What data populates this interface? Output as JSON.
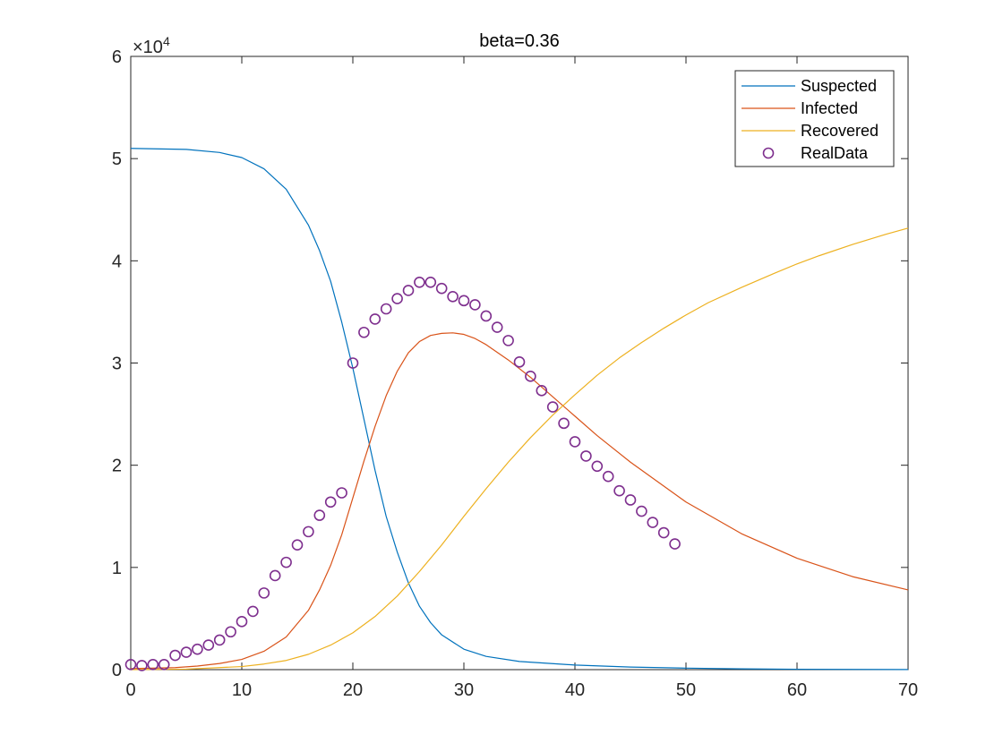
{
  "chart_data": {
    "type": "line",
    "title": "beta=0.36",
    "xlabel": "",
    "ylabel": "",
    "xlim": [
      0,
      70
    ],
    "ylim": [
      0,
      60000
    ],
    "x_ticks": [
      0,
      10,
      20,
      30,
      40,
      50,
      60,
      70
    ],
    "y_ticks": [
      0,
      1,
      2,
      3,
      4,
      5,
      6
    ],
    "y_exponent": {
      "base": "×10",
      "power": "4"
    },
    "legend_position": "top-right",
    "grid": false,
    "series": [
      {
        "name": "Suspected",
        "style": "line",
        "color": "#0072BD",
        "points": [
          [
            0,
            51000
          ],
          [
            5,
            50900
          ],
          [
            8,
            50600
          ],
          [
            10,
            50100
          ],
          [
            12,
            49000
          ],
          [
            14,
            47000
          ],
          [
            16,
            43500
          ],
          [
            17,
            41000
          ],
          [
            18,
            38000
          ],
          [
            19,
            34000
          ],
          [
            20,
            29500
          ],
          [
            21,
            24500
          ],
          [
            22,
            19500
          ],
          [
            23,
            15000
          ],
          [
            24,
            11500
          ],
          [
            25,
            8500
          ],
          [
            26,
            6200
          ],
          [
            27,
            4600
          ],
          [
            28,
            3400
          ],
          [
            30,
            2000
          ],
          [
            32,
            1300
          ],
          [
            35,
            800
          ],
          [
            40,
            450
          ],
          [
            45,
            250
          ],
          [
            50,
            150
          ],
          [
            55,
            80
          ],
          [
            60,
            40
          ],
          [
            70,
            10
          ]
        ]
      },
      {
        "name": "Infected",
        "style": "line",
        "color": "#D95319",
        "points": [
          [
            0,
            100
          ],
          [
            4,
            200
          ],
          [
            6,
            350
          ],
          [
            8,
            600
          ],
          [
            10,
            1000
          ],
          [
            12,
            1800
          ],
          [
            14,
            3200
          ],
          [
            16,
            5800
          ],
          [
            17,
            7800
          ],
          [
            18,
            10200
          ],
          [
            19,
            13200
          ],
          [
            20,
            16800
          ],
          [
            21,
            20400
          ],
          [
            22,
            23800
          ],
          [
            23,
            26800
          ],
          [
            24,
            29200
          ],
          [
            25,
            31000
          ],
          [
            26,
            32100
          ],
          [
            27,
            32700
          ],
          [
            28,
            32900
          ],
          [
            29,
            32950
          ],
          [
            30,
            32800
          ],
          [
            31,
            32400
          ],
          [
            32,
            31800
          ],
          [
            34,
            30300
          ],
          [
            36,
            28600
          ],
          [
            38,
            26700
          ],
          [
            40,
            24800
          ],
          [
            42,
            22900
          ],
          [
            45,
            20300
          ],
          [
            50,
            16400
          ],
          [
            55,
            13300
          ],
          [
            60,
            10900
          ],
          [
            65,
            9100
          ],
          [
            70,
            7800
          ]
        ]
      },
      {
        "name": "Recovered",
        "style": "line",
        "color": "#EDB120",
        "points": [
          [
            0,
            0
          ],
          [
            5,
            50
          ],
          [
            10,
            300
          ],
          [
            12,
            550
          ],
          [
            14,
            900
          ],
          [
            16,
            1500
          ],
          [
            18,
            2400
          ],
          [
            20,
            3600
          ],
          [
            22,
            5200
          ],
          [
            24,
            7200
          ],
          [
            26,
            9600
          ],
          [
            28,
            12200
          ],
          [
            30,
            15000
          ],
          [
            32,
            17700
          ],
          [
            34,
            20300
          ],
          [
            36,
            22700
          ],
          [
            38,
            24900
          ],
          [
            40,
            26900
          ],
          [
            42,
            28800
          ],
          [
            44,
            30500
          ],
          [
            46,
            32000
          ],
          [
            48,
            33400
          ],
          [
            50,
            34700
          ],
          [
            52,
            35900
          ],
          [
            55,
            37400
          ],
          [
            58,
            38800
          ],
          [
            60,
            39700
          ],
          [
            62,
            40500
          ],
          [
            65,
            41600
          ],
          [
            68,
            42600
          ],
          [
            70,
            43200
          ]
        ]
      },
      {
        "name": "RealData",
        "style": "marker-circle",
        "color": "#7E2F8E",
        "points": [
          [
            0,
            500
          ],
          [
            1,
            400
          ],
          [
            2,
            500
          ],
          [
            3,
            500
          ],
          [
            4,
            1400
          ],
          [
            5,
            1700
          ],
          [
            6,
            2000
          ],
          [
            7,
            2400
          ],
          [
            8,
            2900
          ],
          [
            9,
            3700
          ],
          [
            10,
            4700
          ],
          [
            11,
            5700
          ],
          [
            12,
            7500
          ],
          [
            13,
            9200
          ],
          [
            14,
            10500
          ],
          [
            15,
            12200
          ],
          [
            16,
            13500
          ],
          [
            17,
            15100
          ],
          [
            18,
            16400
          ],
          [
            19,
            17300
          ],
          [
            20,
            30000
          ],
          [
            21,
            33000
          ],
          [
            22,
            34300
          ],
          [
            23,
            35300
          ],
          [
            24,
            36300
          ],
          [
            25,
            37100
          ],
          [
            26,
            37900
          ],
          [
            27,
            37900
          ],
          [
            28,
            37300
          ],
          [
            29,
            36500
          ],
          [
            30,
            36100
          ],
          [
            31,
            35700
          ],
          [
            32,
            34600
          ],
          [
            33,
            33500
          ],
          [
            34,
            32200
          ],
          [
            35,
            30100
          ],
          [
            36,
            28700
          ],
          [
            37,
            27300
          ],
          [
            38,
            25700
          ],
          [
            39,
            24100
          ],
          [
            40,
            22300
          ],
          [
            41,
            20900
          ],
          [
            42,
            19900
          ],
          [
            43,
            18900
          ],
          [
            44,
            17500
          ],
          [
            45,
            16600
          ],
          [
            46,
            15500
          ],
          [
            47,
            14400
          ],
          [
            48,
            13400
          ],
          [
            49,
            12300
          ]
        ]
      }
    ]
  }
}
